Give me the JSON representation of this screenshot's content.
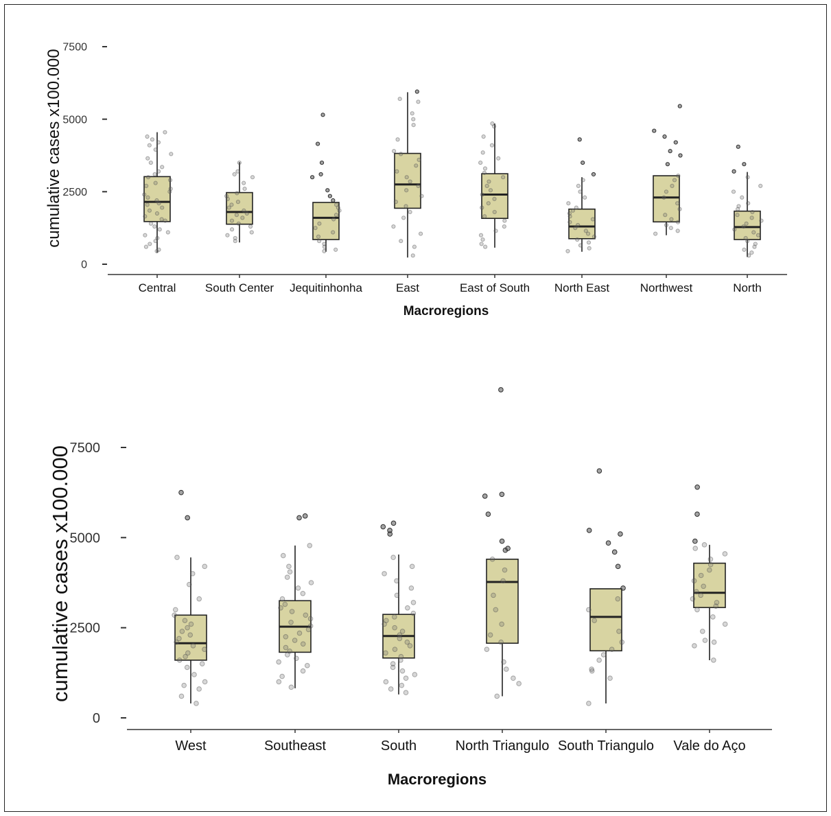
{
  "chart_data": [
    {
      "type": "box",
      "xlabel": "Macroregions",
      "ylabel": "cumulative cases x100.000",
      "yticks": [
        0,
        2500,
        5000,
        7500
      ],
      "ylim": [
        -200,
        8000
      ],
      "box_fill": "#d8d4a2",
      "categories": [
        "Central",
        "South Center",
        "Jequitinhonha",
        "East",
        "East of South",
        "North East",
        "Northwest",
        "North"
      ],
      "boxes": [
        {
          "name": "Central",
          "q1": 1470,
          "median": 2150,
          "q3": 3020,
          "whisker_low": 400,
          "whisker_high": 4550,
          "points": [
            450,
            500,
            600,
            700,
            800,
            900,
            1000,
            1100,
            1200,
            1300,
            1400,
            1500,
            1550,
            1650,
            1750,
            1850,
            1950,
            2050,
            2100,
            2200,
            2300,
            2400,
            2500,
            2600,
            2700,
            2800,
            2900,
            3000,
            3100,
            3200,
            3350,
            3500,
            3650,
            3800,
            3950,
            4100,
            4200,
            4300,
            4400,
            4550
          ]
        },
        {
          "name": "South Center",
          "q1": 1380,
          "median": 1800,
          "q3": 2470,
          "whisker_low": 750,
          "whisker_high": 3520,
          "points": [
            800,
            900,
            1000,
            1100,
            1200,
            1300,
            1400,
            1500,
            1600,
            1700,
            1750,
            1850,
            1950,
            2050,
            2150,
            2250,
            2350,
            2450,
            2600,
            2800,
            3000,
            3100,
            3200,
            3500
          ]
        },
        {
          "name": "Jequitinhonha",
          "q1": 850,
          "median": 1600,
          "q3": 2130,
          "whisker_low": 430,
          "whisker_high": 2130,
          "points": [
            450,
            500,
            600,
            700,
            800,
            950,
            1100,
            1250,
            1400,
            1550,
            1700,
            1850,
            1950,
            2050,
            2200,
            2350,
            2550,
            3000,
            3100,
            3500,
            4150,
            5150
          ]
        },
        {
          "name": "East",
          "q1": 1930,
          "median": 2750,
          "q3": 3820,
          "whisker_low": 230,
          "whisker_high": 5930,
          "points": [
            300,
            600,
            800,
            1050,
            1300,
            1600,
            1800,
            2000,
            2150,
            2350,
            2550,
            2700,
            2850,
            3000,
            3200,
            3400,
            3600,
            3800,
            3900,
            4300,
            4800,
            5000,
            5200,
            5600,
            5700,
            5950
          ]
        },
        {
          "name": "East of South",
          "q1": 1580,
          "median": 2400,
          "q3": 3120,
          "whisker_low": 570,
          "whisker_high": 4850,
          "points": [
            600,
            700,
            850,
            1000,
            1150,
            1300,
            1500,
            1650,
            1800,
            1950,
            2100,
            2250,
            2400,
            2550,
            2700,
            2850,
            3000,
            3150,
            3300,
            3500,
            3650,
            3850,
            4100,
            4400,
            4750,
            4850
          ]
        },
        {
          "name": "North East",
          "q1": 880,
          "median": 1300,
          "q3": 1900,
          "whisker_low": 430,
          "whisker_high": 3000,
          "points": [
            450,
            550,
            650,
            750,
            850,
            950,
            1050,
            1150,
            1250,
            1350,
            1450,
            1550,
            1650,
            1750,
            1850,
            1950,
            2100,
            2300,
            2500,
            2700,
            2900,
            3100,
            3500,
            4300
          ]
        },
        {
          "name": "Northwest",
          "q1": 1460,
          "median": 2300,
          "q3": 3050,
          "whisker_low": 1000,
          "whisker_high": 3050,
          "points": [
            1050,
            1150,
            1250,
            1350,
            1450,
            1550,
            1700,
            1900,
            2100,
            2300,
            2500,
            2700,
            2900,
            3050,
            3450,
            3750,
            3900,
            4200,
            4400,
            4600,
            5450
          ]
        },
        {
          "name": "North",
          "q1": 850,
          "median": 1280,
          "q3": 1830,
          "whisker_low": 250,
          "whisker_high": 3180,
          "points": [
            300,
            400,
            500,
            600,
            700,
            800,
            900,
            1000,
            1100,
            1200,
            1300,
            1400,
            1500,
            1600,
            1700,
            1800,
            1900,
            2000,
            2100,
            2300,
            2500,
            2700,
            3000,
            3200,
            3450,
            4050
          ]
        }
      ]
    },
    {
      "type": "box",
      "xlabel": "Macroregions",
      "ylabel": "cumulative cases x100.000",
      "yticks": [
        0,
        2500,
        5000,
        7500
      ],
      "ylim": [
        -300,
        9500
      ],
      "box_fill": "#d8d4a2",
      "categories": [
        "West",
        "Southeast",
        "South",
        "North Triangulo",
        "South Triangulo",
        "Vale do Aço"
      ],
      "boxes": [
        {
          "name": "West",
          "q1": 1600,
          "median": 2070,
          "q3": 2850,
          "whisker_low": 400,
          "whisker_high": 4450,
          "points": [
            400,
            600,
            800,
            900,
            1000,
            1200,
            1400,
            1500,
            1600,
            1700,
            1800,
            1900,
            2000,
            2100,
            2200,
            2300,
            2400,
            2500,
            2600,
            2700,
            2850,
            3000,
            3300,
            3700,
            4000,
            4200,
            4450,
            5550,
            6250
          ]
        },
        {
          "name": "Southeast",
          "q1": 1820,
          "median": 2530,
          "q3": 3250,
          "whisker_low": 820,
          "whisker_high": 4780,
          "points": [
            850,
            1000,
            1150,
            1300,
            1450,
            1550,
            1650,
            1750,
            1850,
            1950,
            2050,
            2150,
            2250,
            2350,
            2450,
            2550,
            2650,
            2750,
            2850,
            2950,
            3050,
            3150,
            3300,
            3450,
            3600,
            3750,
            3900,
            4050,
            4200,
            4500,
            4780,
            5550,
            5600
          ]
        },
        {
          "name": "South",
          "q1": 1660,
          "median": 2270,
          "q3": 2870,
          "whisker_low": 650,
          "whisker_high": 4530,
          "points": [
            700,
            800,
            900,
            1000,
            1100,
            1200,
            1300,
            1400,
            1500,
            1600,
            1700,
            1800,
            1900,
            2000,
            2100,
            2200,
            2300,
            2400,
            2500,
            2600,
            2700,
            2800,
            2900,
            3050,
            3200,
            3400,
            3600,
            3800,
            4000,
            4200,
            4450,
            5100,
            5200,
            5300,
            5400
          ]
        },
        {
          "name": "North Triangulo",
          "q1": 2070,
          "median": 3770,
          "q3": 4400,
          "whisker_low": 600,
          "whisker_high": 4400,
          "points": [
            600,
            950,
            1100,
            1350,
            1550,
            1900,
            2100,
            2300,
            2600,
            3000,
            3400,
            3800,
            4100,
            4400,
            4650,
            4700,
            4900,
            5650,
            6150,
            6200,
            9100
          ]
        },
        {
          "name": "South Triangulo",
          "q1": 1860,
          "median": 2800,
          "q3": 3580,
          "whisker_low": 400,
          "whisker_high": 3580,
          "points": [
            400,
            1100,
            1300,
            1350,
            1600,
            1750,
            1900,
            2100,
            2400,
            2700,
            3000,
            3300,
            3600,
            4200,
            4600,
            4850,
            5100,
            5200,
            6850
          ]
        },
        {
          "name": "Vale do Aço",
          "q1": 3060,
          "median": 3470,
          "q3": 4290,
          "whisker_low": 1600,
          "whisker_high": 4800,
          "points": [
            1600,
            2000,
            2100,
            2150,
            2400,
            2600,
            2800,
            3000,
            3100,
            3200,
            3300,
            3400,
            3500,
            3650,
            3800,
            3950,
            4100,
            4250,
            4400,
            4550,
            4700,
            4800,
            4900,
            5650,
            6400
          ]
        }
      ]
    }
  ]
}
